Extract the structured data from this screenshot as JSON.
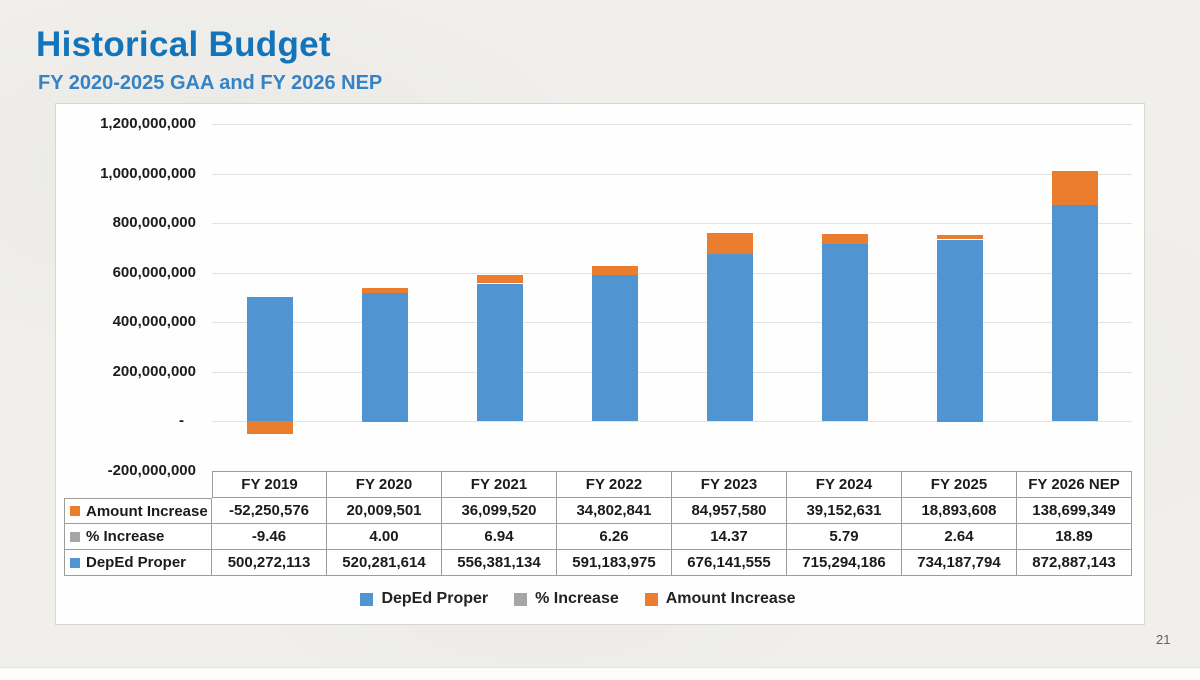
{
  "page": {
    "title": "Historical Budget",
    "subtitle": "FY 2020-2025 GAA and FY 2026 NEP",
    "page_number": "21"
  },
  "colors": {
    "deped_proper": "#5094d2",
    "pct_increase": "#a6a6a6",
    "amount_increase": "#ea7d2e",
    "title": "#1274ba",
    "subtitle": "#3583c6"
  },
  "chart_data": {
    "type": "bar",
    "stacked": true,
    "categories": [
      "FY 2019",
      "FY 2020",
      "FY 2021",
      "FY 2022",
      "FY 2023",
      "FY 2024",
      "FY 2025",
      "FY 2026 NEP"
    ],
    "series": [
      {
        "name": "DepEd Proper",
        "color": "#5094d2",
        "values": [
          500272113,
          520281614,
          556381134,
          591183975,
          676141555,
          715294186,
          734187794,
          872887143
        ]
      },
      {
        "name": "% Increase",
        "color": "#a6a6a6",
        "values": [
          -9.46,
          4.0,
          6.94,
          6.26,
          14.37,
          5.79,
          2.64,
          18.89
        ]
      },
      {
        "name": "Amount Increase",
        "color": "#ea7d2e",
        "values": [
          -52250576,
          20009501,
          36099520,
          34802841,
          84957580,
          39152631,
          18893608,
          138699349
        ]
      }
    ],
    "y_axis": {
      "min": -200000000,
      "max": 1200000000,
      "step": 200000000,
      "tick_labels": [
        "1,200,000,000",
        "1,000,000,000",
        "800,000,000",
        "600,000,000",
        "400,000,000",
        "200,000,000",
        "-",
        "-200,000,000"
      ]
    },
    "ylim": [
      -200000000,
      1200000000
    ],
    "grid": true,
    "legend_position": "bottom",
    "title": "Historical Budget"
  },
  "table": {
    "header": [
      "FY 2019",
      "FY 2020",
      "FY 2021",
      "FY 2022",
      "FY 2023",
      "FY 2024",
      "FY 2025",
      "FY 2026 NEP"
    ],
    "rows": [
      {
        "label": "Amount Increase",
        "key_color": "#ea7d2e",
        "values": [
          "-52,250,576",
          "20,009,501",
          "36,099,520",
          "34,802,841",
          "84,957,580",
          "39,152,631",
          "18,893,608",
          "138,699,349"
        ]
      },
      {
        "label": "% Increase",
        "key_color": "#a6a6a6",
        "values": [
          "-9.46",
          "4.00",
          "6.94",
          "6.26",
          "14.37",
          "5.79",
          "2.64",
          "18.89"
        ]
      },
      {
        "label": "DepEd Proper",
        "key_color": "#5094d2",
        "values": [
          "500,272,113",
          "520,281,614",
          "556,381,134",
          "591,183,975",
          "676,141,555",
          "715,294,186",
          "734,187,794",
          "872,887,143"
        ]
      }
    ]
  },
  "legend": [
    {
      "label": "DepEd Proper",
      "color": "#5094d2"
    },
    {
      "label": "% Increase",
      "color": "#a6a6a6"
    },
    {
      "label": "Amount Increase",
      "color": "#ea7d2e"
    }
  ]
}
